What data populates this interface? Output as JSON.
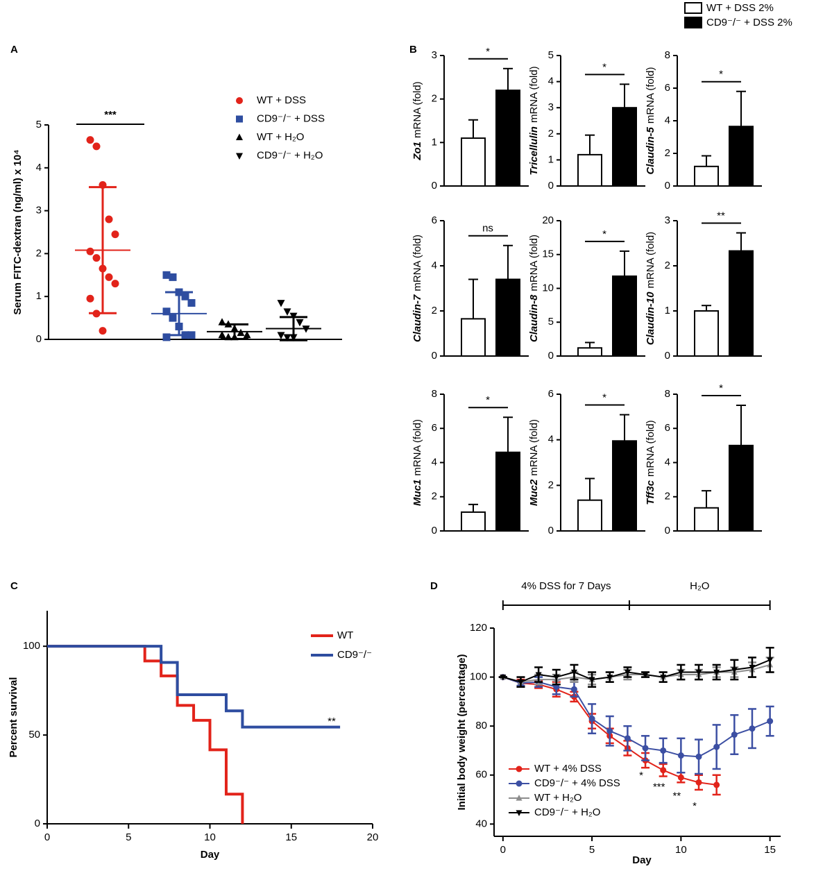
{
  "chart_data": [
    {
      "type": "strip",
      "panel": "A",
      "ylabel": "Serum FITC-dextran (ng/ml) x 10⁴",
      "ylim": [
        0,
        5
      ],
      "yticks": [
        0,
        1,
        2,
        3,
        4,
        5
      ],
      "significance": "***",
      "series": [
        {
          "name": "WT + DSS",
          "color": "#e2231a",
          "marker": "circle",
          "values": [
            4.65,
            4.5,
            3.6,
            2.8,
            2.45,
            2.05,
            1.9,
            1.65,
            1.45,
            1.3,
            0.95,
            0.6,
            0.2
          ],
          "mean": 2.08,
          "error": 1.47
        },
        {
          "name": "CD9⁻/⁻ + DSS",
          "color": "#2e4da0",
          "marker": "square",
          "values": [
            1.5,
            1.45,
            1.1,
            1.0,
            0.85,
            0.65,
            0.5,
            0.3,
            0.1,
            0.1,
            0.05
          ],
          "mean": 0.6,
          "error": 0.5
        },
        {
          "name": "WT + H₂O",
          "color": "#000000",
          "marker": "triangle-up",
          "values": [
            0.4,
            0.35,
            0.25,
            0.15,
            0.1,
            0.1,
            0.05,
            0.05
          ],
          "mean": 0.18,
          "error": 0.17
        },
        {
          "name": "CD9⁻/⁻ + H₂O",
          "color": "#000000",
          "marker": "triangle-down",
          "values": [
            0.85,
            0.65,
            0.55,
            0.4,
            0.25,
            0.1,
            0.05,
            0.05
          ],
          "mean": 0.25,
          "error": 0.27
        }
      ]
    },
    {
      "type": "bar_panels",
      "panel": "B",
      "legend": [
        {
          "name": "WT + DSS 2%",
          "color": "#ffffff"
        },
        {
          "name": "CD9⁻/⁻ + DSS 2%",
          "color": "#000000"
        }
      ],
      "panels": [
        {
          "gene": "Zo1",
          "unit": "mRNA (fold)",
          "ylim": [
            0,
            3
          ],
          "yticks": [
            0,
            1,
            2,
            3
          ],
          "values": [
            1.1,
            2.2
          ],
          "errors": [
            0.42,
            0.5
          ],
          "significance": "*"
        },
        {
          "gene": "Tricellulin",
          "unit": "mRNA (fold)",
          "ylim": [
            0,
            5
          ],
          "yticks": [
            0,
            1,
            2,
            3,
            4,
            5
          ],
          "values": [
            1.2,
            3.0
          ],
          "errors": [
            0.75,
            0.9
          ],
          "significance": "*"
        },
        {
          "gene": "Claudin-5",
          "unit": "mRNA (fold)",
          "ylim": [
            0,
            8
          ],
          "yticks": [
            0,
            2,
            4,
            6,
            8
          ],
          "values": [
            1.2,
            3.65
          ],
          "errors": [
            0.65,
            2.15
          ],
          "significance": "*"
        },
        {
          "gene": "Claudin-7",
          "unit": "mRNA (fold)",
          "ylim": [
            0,
            6
          ],
          "yticks": [
            0,
            2,
            4,
            6
          ],
          "values": [
            1.65,
            3.4
          ],
          "errors": [
            1.75,
            1.5
          ],
          "significance": "ns"
        },
        {
          "gene": "Claudin-8",
          "unit": "mRNA (fold)",
          "ylim": [
            0,
            20
          ],
          "yticks": [
            0,
            5,
            10,
            15,
            20
          ],
          "values": [
            1.2,
            11.8
          ],
          "errors": [
            0.8,
            3.7
          ],
          "significance": "*"
        },
        {
          "gene": "Claudin-10",
          "unit": "mRNA (fold)",
          "ylim": [
            0,
            3
          ],
          "yticks": [
            0,
            1,
            2,
            3
          ],
          "values": [
            1.0,
            2.33
          ],
          "errors": [
            0.12,
            0.4
          ],
          "significance": "**"
        },
        {
          "gene": "Muc1",
          "unit": "mRNA (fold)",
          "ylim": [
            0,
            8
          ],
          "yticks": [
            0,
            2,
            4,
            6,
            8
          ],
          "values": [
            1.1,
            4.6
          ],
          "errors": [
            0.45,
            2.05
          ],
          "significance": "*"
        },
        {
          "gene": "Muc2",
          "unit": "mRNA (fold)",
          "ylim": [
            0,
            6
          ],
          "yticks": [
            0,
            2,
            4,
            6
          ],
          "values": [
            1.35,
            3.95
          ],
          "errors": [
            0.95,
            1.15
          ],
          "significance": "*"
        },
        {
          "gene": "Tff3c",
          "unit": "mRNA (fold)",
          "ylim": [
            0,
            8
          ],
          "yticks": [
            0,
            2,
            4,
            6,
            8
          ],
          "values": [
            1.35,
            5.0
          ],
          "errors": [
            1.0,
            2.35
          ],
          "significance": "*"
        }
      ]
    },
    {
      "type": "step",
      "panel": "C",
      "xlabel": "Day",
      "ylabel": "Percent survival",
      "xlim": [
        0,
        20
      ],
      "xticks": [
        0,
        5,
        10,
        15,
        20
      ],
      "ylim": [
        0,
        120
      ],
      "yticks": [
        0,
        50,
        100
      ],
      "significance": "**",
      "series": [
        {
          "name": "WT",
          "color": "#e2231a",
          "x": [
            0,
            6,
            7,
            8,
            9,
            10,
            11,
            12
          ],
          "values": [
            100,
            91.7,
            83.3,
            66.7,
            58.3,
            41.7,
            16.7,
            0
          ]
        },
        {
          "name": "CD9⁻/⁻",
          "color": "#2e4da0",
          "x": [
            0,
            7,
            8,
            11,
            12,
            18
          ],
          "values": [
            100,
            90.9,
            72.7,
            63.6,
            54.5,
            54.5
          ]
        }
      ]
    },
    {
      "type": "line",
      "panel": "D",
      "xlabel": "Day",
      "ylabel": "Initial body weight (percentage)",
      "xlim": [
        -0.5,
        15.6
      ],
      "xticks": [
        0,
        5,
        10,
        15
      ],
      "ylim": [
        35,
        120
      ],
      "yticks": [
        40,
        60,
        80,
        100,
        120
      ],
      "phases": [
        {
          "label": "4% DSS for 7 Days",
          "x": [
            0,
            7.1
          ]
        },
        {
          "label": "H₂O",
          "x": [
            7.1,
            15
          ]
        }
      ],
      "annotations": [
        {
          "x": 8,
          "label": "*"
        },
        {
          "x": 9,
          "label": "***"
        },
        {
          "x": 10,
          "label": "**"
        },
        {
          "x": 11,
          "label": "*"
        }
      ],
      "series": [
        {
          "name": "WT + 4% DSS",
          "color": "#e2231a",
          "marker": "circle",
          "x": [
            0,
            1,
            2,
            3,
            4,
            5,
            6,
            7,
            8,
            9,
            10,
            11,
            12
          ],
          "values": [
            100,
            97.5,
            97,
            95,
            92,
            82,
            76,
            71,
            66,
            62,
            59,
            57,
            56
          ],
          "errors": [
            0,
            1.5,
            1.5,
            3,
            2,
            3,
            3,
            3,
            3,
            2.5,
            2,
            3,
            4
          ]
        },
        {
          "name": "CD9⁻/⁻ + 4% DSS",
          "color": "#3c4fa3",
          "marker": "circle",
          "x": [
            0,
            1,
            2,
            3,
            4,
            5,
            6,
            7,
            8,
            9,
            10,
            11,
            12,
            13,
            14,
            15
          ],
          "values": [
            100,
            97.5,
            98,
            96,
            95,
            83,
            78,
            75,
            71,
            70,
            68,
            67.5,
            71.5,
            76.5,
            79,
            82
          ],
          "errors": [
            0,
            1,
            2,
            3,
            3,
            6,
            6,
            5,
            5,
            5,
            7,
            7,
            9,
            8,
            8,
            6
          ]
        },
        {
          "name": "WT + H₂O",
          "color": "#8c8c8c",
          "marker": "triangle-up",
          "x": [
            0,
            1,
            2,
            3,
            4,
            5,
            6,
            7,
            8,
            9,
            10,
            11,
            12,
            13,
            14,
            15
          ],
          "values": [
            100,
            98,
            99,
            99,
            100,
            99,
            100,
            101,
            101,
            100,
            101,
            101,
            102,
            102,
            103,
            105
          ],
          "errors": [
            0,
            2,
            2,
            2,
            2,
            2,
            2,
            2,
            1,
            2,
            2,
            2,
            2,
            2,
            3,
            3
          ]
        },
        {
          "name": "CD9⁻/⁻ + H₂O",
          "color": "#000000",
          "marker": "triangle-down",
          "x": [
            0,
            1,
            2,
            3,
            4,
            5,
            6,
            7,
            8,
            9,
            10,
            11,
            12,
            13,
            14,
            15
          ],
          "values": [
            100,
            98,
            101,
            100,
            102,
            99,
            100,
            102,
            101,
            100,
            102,
            102,
            102,
            103,
            104,
            107
          ],
          "errors": [
            0,
            2,
            3,
            3,
            3,
            3,
            2,
            2,
            1,
            2,
            3,
            3,
            3,
            4,
            4,
            5
          ]
        }
      ]
    }
  ]
}
